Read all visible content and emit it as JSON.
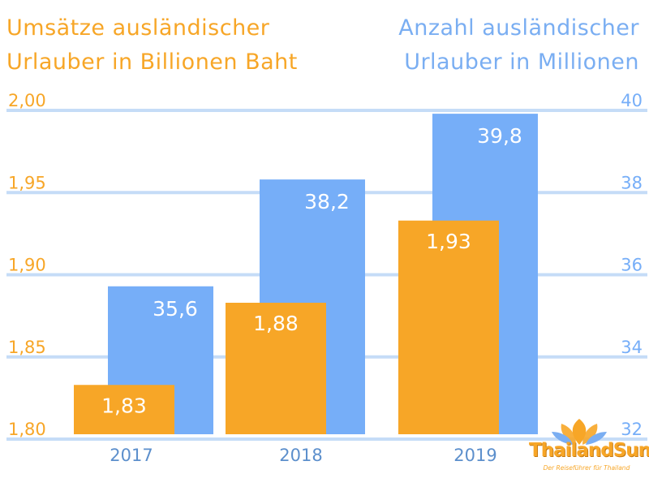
{
  "header": {
    "left_title": [
      "Umsätze ausländischer",
      "Urlauber in Billionen Baht"
    ],
    "right_title": [
      "Anzahl ausländischer",
      "Urlauber in Millionen"
    ]
  },
  "colors": {
    "revenue": "#F7A627",
    "visitors": "#76AEF8",
    "grid": "#C5DCF7",
    "year_label": "#5C8FCC",
    "value_label": "#FFFFFF"
  },
  "chart_data": {
    "type": "bar",
    "categories": [
      "2017",
      "2018",
      "2019"
    ],
    "series": [
      {
        "name": "Umsätze ausländischer Urlauber in Billionen Baht",
        "axis": "left",
        "values": [
          1.83,
          1.88,
          1.93
        ],
        "labels": [
          "1,83",
          "1,88",
          "1,93"
        ]
      },
      {
        "name": "Anzahl ausländischer Urlauber in Millionen",
        "axis": "right",
        "values": [
          35.6,
          38.2,
          39.8
        ],
        "labels": [
          "35,6",
          "38,2",
          "39,8"
        ]
      }
    ],
    "y_left": {
      "min": 1.8,
      "max": 2.0,
      "ticks": [
        "1,80",
        "1,85",
        "1,90",
        "1,95",
        "2,00"
      ]
    },
    "y_right": {
      "min": 32,
      "max": 40,
      "ticks": [
        "32",
        "34",
        "36",
        "38",
        "40"
      ]
    },
    "grid": true,
    "legend": "none"
  },
  "logo": {
    "word": "ThailandSun",
    "tagline": "Der Reiseführer für Thailand"
  }
}
